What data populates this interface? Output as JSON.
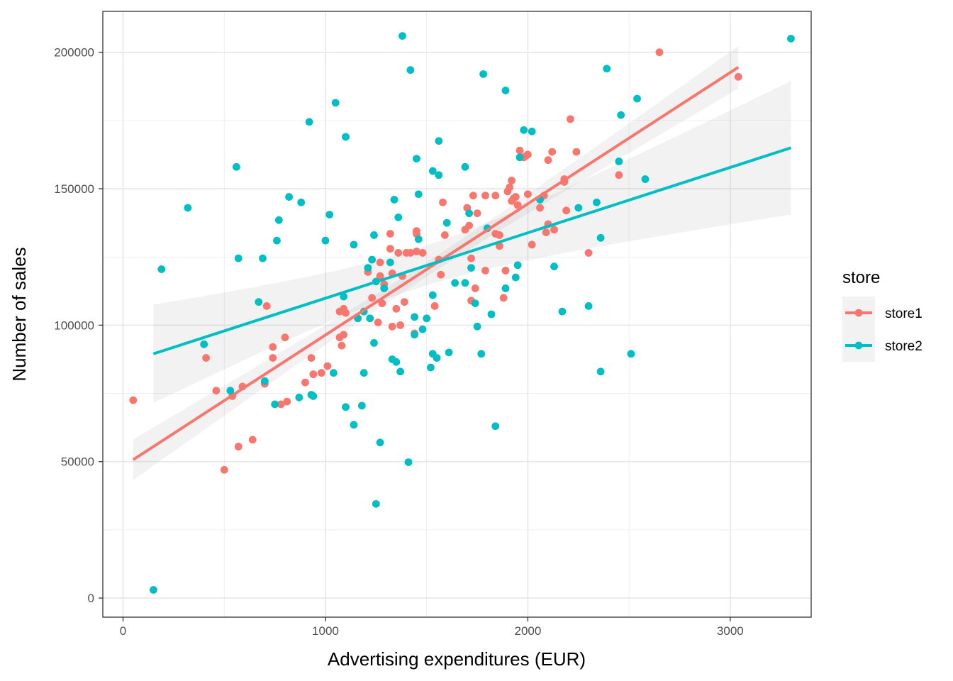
{
  "chart_data": {
    "type": "scatter",
    "title": "",
    "xlabel": "Advertising expenditures (EUR)",
    "ylabel": "Number of sales",
    "xlim": [
      -100,
      3400
    ],
    "ylim": [
      -7000,
      215000
    ],
    "x_ticks": [
      0,
      1000,
      2000,
      3000
    ],
    "y_ticks": [
      0,
      50000,
      100000,
      150000,
      200000
    ],
    "x_tick_labels": [
      "0",
      "1000",
      "2000",
      "3000"
    ],
    "y_tick_labels": [
      "0",
      "50000",
      "100000",
      "150000",
      "200000"
    ],
    "grid": true,
    "legend": {
      "title": "store",
      "position": "right"
    },
    "series": [
      {
        "name": "store1",
        "color": "#F8766D",
        "points": [
          [
            50,
            72500
          ],
          [
            410,
            88000
          ],
          [
            460,
            76000
          ],
          [
            500,
            47000
          ],
          [
            540,
            74000
          ],
          [
            570,
            55500
          ],
          [
            590,
            77500
          ],
          [
            640,
            58000
          ],
          [
            700,
            78500
          ],
          [
            710,
            107000
          ],
          [
            740,
            92000
          ],
          [
            740,
            88000
          ],
          [
            780,
            71000
          ],
          [
            800,
            95500
          ],
          [
            810,
            72000
          ],
          [
            900,
            79000
          ],
          [
            930,
            88000
          ],
          [
            940,
            82000
          ],
          [
            980,
            82500
          ],
          [
            1010,
            85000
          ],
          [
            1070,
            105000
          ],
          [
            1070,
            95500
          ],
          [
            1080,
            92500
          ],
          [
            1090,
            96500
          ],
          [
            1090,
            106000
          ],
          [
            1100,
            104500
          ],
          [
            1210,
            119500
          ],
          [
            1230,
            110000
          ],
          [
            1260,
            101000
          ],
          [
            1270,
            123000
          ],
          [
            1270,
            118000
          ],
          [
            1280,
            108000
          ],
          [
            1290,
            115000
          ],
          [
            1320,
            133500
          ],
          [
            1320,
            128000
          ],
          [
            1330,
            119000
          ],
          [
            1330,
            99500
          ],
          [
            1350,
            106000
          ],
          [
            1360,
            126500
          ],
          [
            1370,
            100000
          ],
          [
            1380,
            118000
          ],
          [
            1390,
            108500
          ],
          [
            1400,
            126500
          ],
          [
            1420,
            126500
          ],
          [
            1440,
            97000
          ],
          [
            1450,
            134500
          ],
          [
            1450,
            133500
          ],
          [
            1450,
            127000
          ],
          [
            1480,
            126500
          ],
          [
            1540,
            107000
          ],
          [
            1560,
            124000
          ],
          [
            1570,
            118500
          ],
          [
            1580,
            145000
          ],
          [
            1590,
            133000
          ],
          [
            1690,
            135000
          ],
          [
            1700,
            143000
          ],
          [
            1710,
            136500
          ],
          [
            1720,
            124500
          ],
          [
            1720,
            109000
          ],
          [
            1730,
            147500
          ],
          [
            1740,
            113500
          ],
          [
            1750,
            141000
          ],
          [
            1790,
            147500
          ],
          [
            1790,
            120000
          ],
          [
            1840,
            147500
          ],
          [
            1840,
            133500
          ],
          [
            1860,
            129000
          ],
          [
            1860,
            133000
          ],
          [
            1880,
            110000
          ],
          [
            1890,
            120000
          ],
          [
            1900,
            149000
          ],
          [
            1910,
            150500
          ],
          [
            1920,
            145500
          ],
          [
            1920,
            153000
          ],
          [
            1930,
            146500
          ],
          [
            1940,
            147000
          ],
          [
            1950,
            144000
          ],
          [
            1960,
            164000
          ],
          [
            1980,
            161500
          ],
          [
            1990,
            162000
          ],
          [
            2000,
            162500
          ],
          [
            2000,
            148000
          ],
          [
            2020,
            129500
          ],
          [
            2060,
            143000
          ],
          [
            2080,
            147500
          ],
          [
            2090,
            134000
          ],
          [
            2100,
            137000
          ],
          [
            2100,
            160500
          ],
          [
            2120,
            163500
          ],
          [
            2130,
            135000
          ],
          [
            2180,
            153500
          ],
          [
            2180,
            152500
          ],
          [
            2190,
            142000
          ],
          [
            2210,
            175500
          ],
          [
            2240,
            163500
          ],
          [
            2300,
            126500
          ],
          [
            2450,
            155000
          ],
          [
            2650,
            200000
          ],
          [
            3040,
            191000
          ]
        ],
        "fit_line": [
          [
            50,
            50700
          ],
          [
            3040,
            194500
          ]
        ]
      },
      {
        "name": "store2",
        "color": "#00BFC4",
        "points": [
          [
            150,
            3000
          ],
          [
            190,
            120500
          ],
          [
            320,
            143000
          ],
          [
            400,
            93000
          ],
          [
            530,
            76000
          ],
          [
            560,
            158000
          ],
          [
            570,
            124500
          ],
          [
            670,
            108500
          ],
          [
            690,
            124500
          ],
          [
            700,
            79500
          ],
          [
            750,
            71000
          ],
          [
            760,
            131000
          ],
          [
            770,
            138500
          ],
          [
            820,
            147000
          ],
          [
            870,
            73500
          ],
          [
            880,
            145000
          ],
          [
            920,
            174500
          ],
          [
            930,
            74500
          ],
          [
            940,
            74000
          ],
          [
            1000,
            131000
          ],
          [
            1020,
            140500
          ],
          [
            1040,
            82500
          ],
          [
            1050,
            181500
          ],
          [
            1090,
            110500
          ],
          [
            1100,
            70000
          ],
          [
            1100,
            169000
          ],
          [
            1140,
            129500
          ],
          [
            1140,
            63500
          ],
          [
            1160,
            102500
          ],
          [
            1180,
            70500
          ],
          [
            1190,
            82500
          ],
          [
            1190,
            105000
          ],
          [
            1210,
            121000
          ],
          [
            1220,
            102500
          ],
          [
            1230,
            124000
          ],
          [
            1240,
            93500
          ],
          [
            1240,
            133000
          ],
          [
            1250,
            34500
          ],
          [
            1250,
            116000
          ],
          [
            1270,
            57000
          ],
          [
            1290,
            113500
          ],
          [
            1320,
            123000
          ],
          [
            1330,
            87500
          ],
          [
            1340,
            146000
          ],
          [
            1350,
            86500
          ],
          [
            1360,
            139500
          ],
          [
            1370,
            83000
          ],
          [
            1380,
            206000
          ],
          [
            1410,
            49800
          ],
          [
            1420,
            193500
          ],
          [
            1440,
            103000
          ],
          [
            1440,
            96500
          ],
          [
            1450,
            161000
          ],
          [
            1460,
            148000
          ],
          [
            1460,
            131500
          ],
          [
            1480,
            98500
          ],
          [
            1500,
            102500
          ],
          [
            1520,
            84500
          ],
          [
            1530,
            111000
          ],
          [
            1530,
            89500
          ],
          [
            1530,
            156500
          ],
          [
            1550,
            88000
          ],
          [
            1560,
            167500
          ],
          [
            1560,
            155000
          ],
          [
            1600,
            137500
          ],
          [
            1610,
            90000
          ],
          [
            1640,
            115500
          ],
          [
            1690,
            115500
          ],
          [
            1690,
            158000
          ],
          [
            1710,
            141000
          ],
          [
            1720,
            121000
          ],
          [
            1740,
            108000
          ],
          [
            1750,
            99500
          ],
          [
            1770,
            89500
          ],
          [
            1780,
            192000
          ],
          [
            1800,
            135500
          ],
          [
            1820,
            104000
          ],
          [
            1840,
            63000
          ],
          [
            1890,
            113500
          ],
          [
            1890,
            186000
          ],
          [
            1940,
            117500
          ],
          [
            1950,
            122000
          ],
          [
            1960,
            161500
          ],
          [
            1980,
            171500
          ],
          [
            2020,
            171000
          ],
          [
            2060,
            146000
          ],
          [
            2130,
            121500
          ],
          [
            2170,
            105000
          ],
          [
            2250,
            143000
          ],
          [
            2300,
            107000
          ],
          [
            2340,
            145000
          ],
          [
            2360,
            132000
          ],
          [
            2360,
            83000
          ],
          [
            2390,
            194000
          ],
          [
            2450,
            160000
          ],
          [
            2460,
            177000
          ],
          [
            2510,
            89500
          ],
          [
            2540,
            183000
          ],
          [
            2580,
            153500
          ],
          [
            3300,
            205000
          ]
        ],
        "fit_line": [
          [
            150,
            89500
          ],
          [
            3300,
            165000
          ]
        ]
      }
    ]
  }
}
